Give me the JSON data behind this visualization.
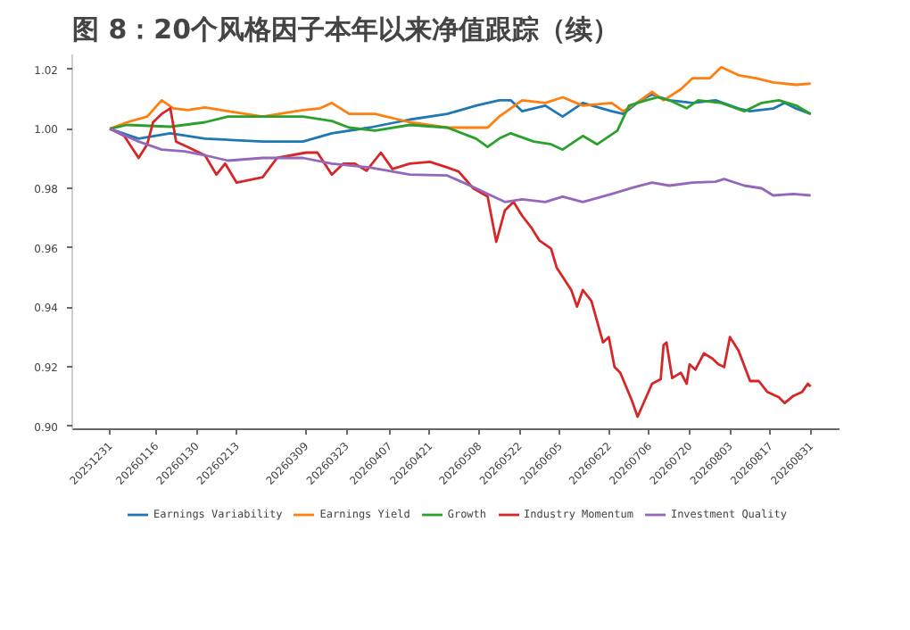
{
  "chart_data": {
    "type": "line",
    "title": "图 8：20个风格因子本年以来净值跟踪（续）",
    "xlim": [
      "2025-12-18",
      "2026-09-10"
    ],
    "ylim": [
      0.899,
      1.025
    ],
    "xticks": [
      {
        "value": "2025-12-31",
        "label": "20251231"
      },
      {
        "value": "2026-01-16",
        "label": "20260116"
      },
      {
        "value": "2026-01-30",
        "label": "20260130"
      },
      {
        "value": "2026-02-13",
        "label": "20260213"
      },
      {
        "value": "2026-03-09",
        "label": "20260309"
      },
      {
        "value": "2026-03-23",
        "label": "20260323"
      },
      {
        "value": "2026-04-07",
        "label": "20260407"
      },
      {
        "value": "2026-04-21",
        "label": "20260421"
      },
      {
        "value": "2026-05-08",
        "label": "20260508"
      },
      {
        "value": "2026-05-22",
        "label": "20260522"
      },
      {
        "value": "2026-06-05",
        "label": "20260605"
      },
      {
        "value": "2026-06-22",
        "label": "20260622"
      },
      {
        "value": "2026-07-06",
        "label": "20260706"
      },
      {
        "value": "2026-07-20",
        "label": "20260720"
      },
      {
        "value": "2026-08-03",
        "label": "20260803"
      },
      {
        "value": "2026-08-17",
        "label": "20260817"
      },
      {
        "value": "2026-08-31",
        "label": "20260831"
      }
    ],
    "yticks": [
      {
        "value": 0.9,
        "label": "0.90"
      },
      {
        "value": 0.92,
        "label": "0.92"
      },
      {
        "value": 0.94,
        "label": "0.94"
      },
      {
        "value": 0.96,
        "label": "0.96"
      },
      {
        "value": 0.98,
        "label": "0.98"
      },
      {
        "value": 1.0,
        "label": "1.00"
      },
      {
        "value": 1.02,
        "label": "1.02"
      }
    ],
    "legend": "bottom",
    "series": [
      {
        "name": "Earnings Variability",
        "color": "#1f77b4",
        "x": [
          "2025-12-31",
          "2026-01-10",
          "2026-01-21",
          "2026-02-02",
          "2026-02-22",
          "2026-03-08",
          "2026-03-18",
          "2026-03-31",
          "2026-04-14",
          "2026-04-27",
          "2026-05-07",
          "2026-05-15",
          "2026-05-19",
          "2026-05-23",
          "2026-05-31",
          "2026-06-06",
          "2026-06-13",
          "2026-06-23",
          "2026-06-27",
          "2026-07-03",
          "2026-07-07",
          "2026-07-13",
          "2026-07-21",
          "2026-07-29",
          "2026-08-06",
          "2026-08-10",
          "2026-08-18",
          "2026-08-22",
          "2026-08-26",
          "2026-08-31"
        ],
        "values": [
          1.0,
          0.9967,
          0.9985,
          0.9967,
          0.9957,
          0.9957,
          0.9985,
          1.0004,
          1.0031,
          1.005,
          1.0078,
          1.0096,
          1.0096,
          1.0059,
          1.0078,
          1.0041,
          1.0087,
          1.0059,
          1.005,
          1.0096,
          1.0115,
          1.0096,
          1.0087,
          1.0096,
          1.0068,
          1.0059,
          1.0068,
          1.0087,
          1.0068,
          1.005
        ]
      },
      {
        "name": "Earnings Yield",
        "color": "#ff7f0e",
        "x": [
          "2025-12-31",
          "2026-01-06",
          "2026-01-13",
          "2026-01-18",
          "2026-01-22",
          "2026-01-27",
          "2026-02-02",
          "2026-02-10",
          "2026-02-22",
          "2026-03-08",
          "2026-03-14",
          "2026-03-18",
          "2026-03-24",
          "2026-04-02",
          "2026-04-14",
          "2026-04-27",
          "2026-05-07",
          "2026-05-11",
          "2026-05-15",
          "2026-05-23",
          "2026-05-31",
          "2026-06-06",
          "2026-06-13",
          "2026-06-23",
          "2026-06-27",
          "2026-07-03",
          "2026-07-07",
          "2026-07-11",
          "2026-07-17",
          "2026-07-21",
          "2026-07-27",
          "2026-07-31",
          "2026-08-06",
          "2026-08-12",
          "2026-08-18",
          "2026-08-26",
          "2026-08-31"
        ],
        "values": [
          1.0,
          1.0022,
          1.0041,
          1.0096,
          1.0069,
          1.0063,
          1.0072,
          1.0059,
          1.0041,
          1.0063,
          1.0069,
          1.0087,
          1.005,
          1.005,
          1.0022,
          1.0004,
          1.0004,
          1.0004,
          1.0041,
          1.0096,
          1.0087,
          1.0106,
          1.0078,
          1.0087,
          1.0059,
          1.0096,
          1.0124,
          1.0096,
          1.0133,
          1.017,
          1.017,
          1.0207,
          1.018,
          1.017,
          1.0156,
          1.0148,
          1.0152
        ]
      },
      {
        "name": "Growth",
        "color": "#2ca02c",
        "x": [
          "2025-12-31",
          "2026-01-06",
          "2026-01-21",
          "2026-02-02",
          "2026-02-10",
          "2026-03-08",
          "2026-03-18",
          "2026-03-24",
          "2026-04-02",
          "2026-04-14",
          "2026-04-27",
          "2026-05-07",
          "2026-05-11",
          "2026-05-15",
          "2026-05-19",
          "2026-05-27",
          "2026-06-02",
          "2026-06-06",
          "2026-06-13",
          "2026-06-18",
          "2026-06-25",
          "2026-06-29",
          "2026-07-05",
          "2026-07-09",
          "2026-07-13",
          "2026-07-19",
          "2026-07-23",
          "2026-07-31",
          "2026-08-08",
          "2026-08-14",
          "2026-08-20",
          "2026-08-26",
          "2026-08-31"
        ],
        "values": [
          1.0,
          1.0013,
          1.0007,
          1.0022,
          1.0041,
          1.0041,
          1.0026,
          1.0004,
          0.9994,
          1.0013,
          1.0004,
          0.9967,
          0.9939,
          0.9967,
          0.9985,
          0.9957,
          0.9948,
          0.993,
          0.9976,
          0.9948,
          0.9994,
          1.0078,
          1.0096,
          1.0106,
          1.0096,
          1.0069,
          1.0096,
          1.0087,
          1.0059,
          1.0087,
          1.0096,
          1.0078,
          1.005
        ]
      },
      {
        "name": "Industry Momentum",
        "color": "#d62728",
        "x": [
          "2025-12-31",
          "2026-01-05",
          "2026-01-10",
          "2026-01-13",
          "2026-01-15",
          "2026-01-18",
          "2026-01-21",
          "2026-01-23",
          "2026-01-27",
          "2026-02-02",
          "2026-02-06",
          "2026-02-09",
          "2026-02-13",
          "2026-02-22",
          "2026-02-27",
          "2026-03-09",
          "2026-03-13",
          "2026-03-18",
          "2026-03-22",
          "2026-03-26",
          "2026-03-30",
          "2026-04-04",
          "2026-04-08",
          "2026-04-14",
          "2026-04-21",
          "2026-04-27",
          "2026-05-01",
          "2026-05-06",
          "2026-05-11",
          "2026-05-14",
          "2026-05-17",
          "2026-05-20",
          "2026-05-23",
          "2026-05-26",
          "2026-05-29",
          "2026-06-02",
          "2026-06-04",
          "2026-06-09",
          "2026-06-11",
          "2026-06-13",
          "2026-06-16",
          "2026-06-20",
          "2026-06-22",
          "2026-06-24",
          "2026-06-26",
          "2026-06-30",
          "2026-07-02",
          "2026-07-07",
          "2026-07-10",
          "2026-07-11",
          "2026-07-12",
          "2026-07-14",
          "2026-07-17",
          "2026-07-19",
          "2026-07-20",
          "2026-07-22",
          "2026-07-25",
          "2026-07-28",
          "2026-07-30",
          "2026-08-01",
          "2026-08-03",
          "2026-08-06",
          "2026-08-10",
          "2026-08-13",
          "2026-08-16",
          "2026-08-20",
          "2026-08-22",
          "2026-08-25",
          "2026-08-28",
          "2026-08-30",
          "2026-08-31"
        ],
        "values": [
          1.0,
          0.9976,
          0.9902,
          0.9948,
          1.0022,
          1.005,
          1.0069,
          0.9957,
          0.9939,
          0.9911,
          0.9846,
          0.9883,
          0.9819,
          0.9837,
          0.9902,
          0.992,
          0.992,
          0.9846,
          0.9883,
          0.9883,
          0.9859,
          0.992,
          0.9865,
          0.9883,
          0.9889,
          0.987,
          0.9856,
          0.98,
          0.9772,
          0.962,
          0.9726,
          0.9754,
          0.9707,
          0.967,
          0.9624,
          0.9597,
          0.9532,
          0.9458,
          0.9402,
          0.9458,
          0.9421,
          0.9282,
          0.93,
          0.9199,
          0.918,
          0.9087,
          0.9032,
          0.9143,
          0.9158,
          0.9273,
          0.9282,
          0.9162,
          0.918,
          0.9143,
          0.9208,
          0.919,
          0.9245,
          0.9227,
          0.9208,
          0.9199,
          0.93,
          0.9254,
          0.9152,
          0.9152,
          0.9115,
          0.9097,
          0.9078,
          0.9102,
          0.9115,
          0.9143,
          0.9134
        ]
      },
      {
        "name": "Investment Quality",
        "color": "#9467bd",
        "x": [
          "2025-12-31",
          "2026-01-10",
          "2026-01-18",
          "2026-01-26",
          "2026-02-02",
          "2026-02-10",
          "2026-02-22",
          "2026-03-08",
          "2026-03-18",
          "2026-03-31",
          "2026-04-14",
          "2026-04-27",
          "2026-05-07",
          "2026-05-11",
          "2026-05-17",
          "2026-05-23",
          "2026-05-31",
          "2026-06-06",
          "2026-06-13",
          "2026-06-23",
          "2026-07-01",
          "2026-07-07",
          "2026-07-13",
          "2026-07-21",
          "2026-07-29",
          "2026-08-01",
          "2026-08-08",
          "2026-08-14",
          "2026-08-18",
          "2026-08-25",
          "2026-08-31"
        ],
        "values": [
          1.0,
          0.9957,
          0.993,
          0.9924,
          0.9911,
          0.9893,
          0.9902,
          0.9902,
          0.9883,
          0.987,
          0.9846,
          0.9843,
          0.98,
          0.9781,
          0.9754,
          0.9763,
          0.9754,
          0.9772,
          0.9754,
          0.9781,
          0.9804,
          0.9819,
          0.9809,
          0.9819,
          0.9822,
          0.9831,
          0.9809,
          0.98,
          0.9776,
          0.9781,
          0.9776
        ]
      }
    ]
  }
}
